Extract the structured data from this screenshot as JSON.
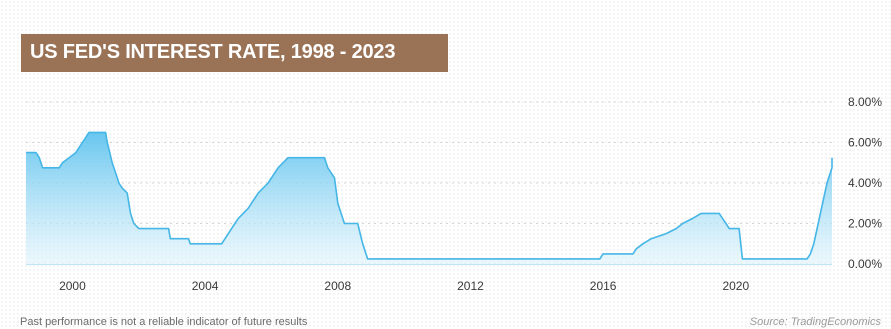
{
  "title": "US FED'S INTEREST RATE, 1998 - 2023",
  "footnote": "Past performance is not a reliable indicator of future results",
  "source": "Source: TradingEconomics",
  "colors": {
    "title_bg": "#9a7256",
    "line": "#45b6e6",
    "fill_top": "#5fc3ee",
    "grid": "#d4d4d4"
  },
  "chart_data": {
    "type": "area",
    "title": "US FED'S INTEREST RATE, 1998 - 2023",
    "xlabel": "",
    "ylabel": "",
    "xlim": [
      1998.6,
      2022.9
    ],
    "ylim": [
      0,
      8
    ],
    "x_ticks": [
      {
        "value": 2000,
        "label": "2000"
      },
      {
        "value": 2004,
        "label": "2004"
      },
      {
        "value": 2008,
        "label": "2008"
      },
      {
        "value": 2012,
        "label": "2012"
      },
      {
        "value": 2016,
        "label": "2016"
      },
      {
        "value": 2020,
        "label": "2020"
      }
    ],
    "y_ticks": [
      {
        "value": 0,
        "label": "0.00%"
      },
      {
        "value": 2,
        "label": "2.00%"
      },
      {
        "value": 4,
        "label": "4.00%"
      },
      {
        "value": 6,
        "label": "6.00%"
      },
      {
        "value": 8,
        "label": "8.00%"
      }
    ],
    "grid": "horizontal dotted",
    "y_axis_position": "right",
    "series": [
      {
        "name": "",
        "points": [
          [
            1998.6,
            5.5
          ],
          [
            1998.9,
            5.5
          ],
          [
            1999.0,
            5.25
          ],
          [
            1999.1,
            4.75
          ],
          [
            1999.6,
            4.75
          ],
          [
            1999.7,
            5.0
          ],
          [
            1999.9,
            5.25
          ],
          [
            2000.1,
            5.5
          ],
          [
            2000.2,
            5.75
          ],
          [
            2000.3,
            6.0
          ],
          [
            2000.5,
            6.5
          ],
          [
            2001.0,
            6.5
          ],
          [
            2001.05,
            6.0
          ],
          [
            2001.2,
            5.0
          ],
          [
            2001.3,
            4.5
          ],
          [
            2001.4,
            4.0
          ],
          [
            2001.5,
            3.75
          ],
          [
            2001.65,
            3.5
          ],
          [
            2001.75,
            2.5
          ],
          [
            2001.85,
            2.0
          ],
          [
            2002.0,
            1.75
          ],
          [
            2002.9,
            1.75
          ],
          [
            2002.95,
            1.25
          ],
          [
            2003.5,
            1.25
          ],
          [
            2003.55,
            1.0
          ],
          [
            2004.5,
            1.0
          ],
          [
            2004.6,
            1.25
          ],
          [
            2004.8,
            1.75
          ],
          [
            2005.0,
            2.25
          ],
          [
            2005.3,
            2.75
          ],
          [
            2005.6,
            3.5
          ],
          [
            2005.9,
            4.0
          ],
          [
            2006.2,
            4.75
          ],
          [
            2006.5,
            5.25
          ],
          [
            2007.6,
            5.25
          ],
          [
            2007.7,
            4.75
          ],
          [
            2007.9,
            4.25
          ],
          [
            2008.0,
            3.0
          ],
          [
            2008.2,
            2.0
          ],
          [
            2008.6,
            2.0
          ],
          [
            2008.75,
            1.0
          ],
          [
            2008.9,
            0.25
          ],
          [
            2015.9,
            0.25
          ],
          [
            2016.0,
            0.5
          ],
          [
            2016.9,
            0.5
          ],
          [
            2017.0,
            0.75
          ],
          [
            2017.2,
            1.0
          ],
          [
            2017.45,
            1.25
          ],
          [
            2017.9,
            1.5
          ],
          [
            2018.2,
            1.75
          ],
          [
            2018.4,
            2.0
          ],
          [
            2018.7,
            2.25
          ],
          [
            2018.95,
            2.5
          ],
          [
            2019.5,
            2.5
          ],
          [
            2019.6,
            2.25
          ],
          [
            2019.7,
            2.0
          ],
          [
            2019.8,
            1.75
          ],
          [
            2020.1,
            1.75
          ],
          [
            2020.2,
            0.25
          ],
          [
            2022.15,
            0.25
          ],
          [
            2022.25,
            0.5
          ],
          [
            2022.35,
            1.0
          ],
          [
            2022.45,
            1.75
          ],
          [
            2022.55,
            2.5
          ],
          [
            2022.65,
            3.25
          ],
          [
            2022.75,
            4.0
          ],
          [
            2022.85,
            4.5
          ],
          [
            2022.9,
            4.75
          ],
          [
            2023.0,
            5.0
          ],
          [
            2023.05,
            5.25
          ],
          [
            2023.2,
            5.25
          ]
        ]
      }
    ]
  }
}
